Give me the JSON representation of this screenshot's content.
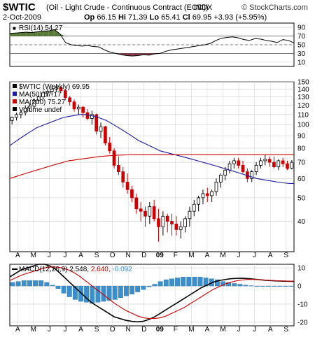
{
  "header": {
    "symbol": "$WTIC",
    "name": "(Oil - Light Crude - Continuous Contract (EOD))",
    "exchange": "INDX",
    "brand": "© StockCharts.com",
    "date": "2-Oct-2009",
    "open_label": "Op",
    "open": "66.15",
    "high_label": "Hi",
    "high": "71.39",
    "low_label": "Lo",
    "low": "65.41",
    "close_label": "Cl",
    "close": "69.95",
    "change": "+3.93 (+5.95%)"
  },
  "colors": {
    "up_candle": "#000000",
    "down_candle": "#cc0000",
    "ma50": "#1a1aa0",
    "ma200": "#cc0000",
    "rsi_line": "#000000",
    "rsi_overbought_fill": "#5a7a3a",
    "rsi_oversold_fill": "#8a3a4a",
    "macd_line": "#000000",
    "signal_line": "#cc0000",
    "histogram": "#3a8fcc",
    "grid": "#cccccc"
  },
  "chart_data": [
    {
      "type": "line",
      "title": "RSI(14) 54.27",
      "legend_label": "RSI(14)",
      "legend_value": "54.27",
      "ylim": [
        0,
        100
      ],
      "ticks": [
        90,
        70,
        50,
        30,
        10
      ],
      "reference_lines": [
        70,
        50,
        30
      ],
      "series": [
        {
          "values": [
            76,
            77,
            78,
            79,
            78,
            80,
            82,
            82,
            85,
            75,
            55,
            50,
            48,
            47,
            48,
            46,
            45,
            38,
            33,
            30,
            27,
            25,
            24,
            25,
            27,
            26,
            29,
            30,
            35,
            38,
            40,
            42,
            44,
            46,
            48,
            50,
            53,
            60,
            65,
            67,
            68,
            66,
            62,
            60,
            64,
            63,
            60,
            58,
            55,
            62,
            60,
            54.27
          ]
        }
      ]
    },
    {
      "type": "candlestick",
      "title": "$WTIC (Weekly) 69.95",
      "legend": [
        "$WTIC (Weekly) 69.95",
        "MA(50) 57.17",
        "MA(200) 75.27",
        "Volume undef"
      ],
      "scale": "log",
      "ylim": [
        30,
        150
      ],
      "ticks": [
        150,
        140,
        130,
        120,
        110,
        100,
        90,
        80,
        70,
        60,
        50,
        40
      ],
      "x_labels": [
        "A",
        "M",
        "J",
        "J",
        "A",
        "S",
        "O",
        "N",
        "D",
        "09",
        "F",
        "M",
        "A",
        "M",
        "J",
        "J",
        "A",
        "S"
      ],
      "ohlc": [
        [
          104,
          108,
          100,
          107
        ],
        [
          107,
          112,
          104,
          110
        ],
        [
          110,
          115,
          106,
          112
        ],
        [
          112,
          120,
          109,
          117
        ],
        [
          117,
          122,
          113,
          119
        ],
        [
          119,
          128,
          116,
          126
        ],
        [
          126,
          132,
          122,
          130
        ],
        [
          130,
          138,
          127,
          135
        ],
        [
          135,
          140,
          130,
          137
        ],
        [
          137,
          145,
          132,
          140
        ],
        [
          140,
          147,
          136,
          142
        ],
        [
          142,
          144,
          135,
          138
        ],
        [
          138,
          140,
          126,
          129
        ],
        [
          129,
          131,
          120,
          124
        ],
        [
          124,
          127,
          113,
          116
        ],
        [
          116,
          121,
          110,
          118
        ],
        [
          118,
          119,
          107,
          112
        ],
        [
          112,
          116,
          104,
          106
        ],
        [
          106,
          114,
          100,
          110
        ],
        [
          110,
          111,
          91,
          94
        ],
        [
          94,
          102,
          88,
          98
        ],
        [
          98,
          99,
          82,
          84
        ],
        [
          84,
          89,
          76,
          78
        ],
        [
          78,
          80,
          66,
          68
        ],
        [
          68,
          74,
          62,
          64
        ],
        [
          64,
          67,
          55,
          58
        ],
        [
          58,
          63,
          52,
          54
        ],
        [
          54,
          56,
          48,
          50
        ],
        [
          50,
          52,
          43,
          45
        ],
        [
          45,
          48,
          40,
          44
        ],
        [
          44,
          46,
          38,
          42
        ],
        [
          42,
          48,
          39,
          46
        ],
        [
          46,
          49,
          40,
          41
        ],
        [
          41,
          45,
          33,
          38
        ],
        [
          38,
          44,
          35,
          42
        ],
        [
          42,
          43,
          36,
          40
        ],
        [
          40,
          43,
          35,
          39
        ],
        [
          39,
          42,
          35,
          37
        ],
        [
          37,
          40,
          34,
          38
        ],
        [
          38,
          42,
          36,
          41
        ],
        [
          41,
          46,
          38,
          44
        ],
        [
          44,
          49,
          42,
          47
        ],
        [
          47,
          51,
          44,
          50
        ],
        [
          50,
          54,
          47,
          52
        ],
        [
          52,
          55,
          48,
          51
        ],
        [
          51,
          54,
          48,
          53
        ],
        [
          53,
          60,
          51,
          58
        ],
        [
          58,
          63,
          55,
          62
        ],
        [
          62,
          67,
          59,
          65
        ],
        [
          65,
          71,
          63,
          69
        ],
        [
          69,
          73,
          66,
          71
        ],
        [
          71,
          73,
          66,
          68
        ],
        [
          68,
          71,
          63,
          64
        ],
        [
          64,
          66,
          58,
          60
        ],
        [
          60,
          65,
          58,
          64
        ],
        [
          64,
          70,
          62,
          68
        ],
        [
          68,
          73,
          66,
          71
        ],
        [
          71,
          75,
          68,
          72
        ],
        [
          72,
          74,
          67,
          70
        ],
        [
          70,
          74,
          66,
          67
        ],
        [
          67,
          72,
          65,
          71
        ],
        [
          71,
          73,
          67,
          69
        ],
        [
          69,
          71,
          65,
          66
        ],
        [
          66.15,
          71.39,
          65.41,
          69.95
        ]
      ],
      "series": [
        {
          "name": "MA(50)",
          "last": 57.17,
          "values": [
            82,
            85,
            88,
            91,
            94,
            97,
            99,
            101,
            103,
            105,
            107,
            108,
            109,
            110,
            110,
            109,
            108,
            106,
            104,
            101,
            98,
            95,
            92,
            89,
            86,
            84,
            82,
            80,
            78,
            77,
            76,
            75,
            74,
            73,
            72,
            71,
            70,
            69,
            68,
            67,
            66,
            65,
            64,
            63,
            62,
            61,
            60,
            59.5,
            59,
            58.5,
            58,
            57.6,
            57.3,
            57.17
          ]
        },
        {
          "name": "MA(200)",
          "last": 75.27,
          "values": [
            60,
            61,
            62,
            63,
            64,
            65,
            66,
            67,
            68,
            69,
            70,
            71,
            71.5,
            72,
            72.5,
            73,
            73.5,
            74,
            74.3,
            74.6,
            74.8,
            75,
            75.1,
            75.2,
            75.2,
            75.2,
            75.2,
            75.2,
            75.2,
            75.2,
            75.2,
            75.2,
            75.2,
            75.2,
            75.2,
            75.2,
            75.2,
            75.2,
            75.2,
            75.2,
            75.2,
            75.2,
            75.2,
            75.2,
            75.2,
            75.2,
            75.2,
            75.2,
            75.2,
            75.2,
            75.2,
            75.2,
            75.2,
            75.27
          ]
        }
      ]
    },
    {
      "type": "line",
      "title": "MACD(12,26,9) 2.548, 2.640, -0.092",
      "legend_label": "MACD(12,26,9)",
      "legend_macd": "2.548",
      "legend_signal": "2.640",
      "legend_hist": "-0.092",
      "ylim": [
        -22,
        12
      ],
      "ticks": [
        10,
        0,
        -10,
        -20
      ],
      "x_labels": [
        "A",
        "M",
        "J",
        "J",
        "A",
        "S",
        "O",
        "N",
        "D",
        "09",
        "F",
        "M",
        "A",
        "M",
        "J",
        "J",
        "A",
        "S"
      ],
      "series": [
        {
          "name": "MACD",
          "values": [
            5,
            7,
            9,
            10,
            11,
            12,
            12,
            11,
            9,
            6,
            3,
            0,
            -3,
            -6,
            -9,
            -11,
            -13,
            -15,
            -17,
            -18,
            -19,
            -19.5,
            -19.8,
            -19.5,
            -18.5,
            -17,
            -15,
            -13,
            -11,
            -9,
            -7,
            -5,
            -3,
            -1,
            0.5,
            2,
            3,
            3.5,
            4,
            4.2,
            4.3,
            4.1,
            3.8,
            3.5,
            3.2,
            3,
            2.8,
            2.7,
            2.6,
            2.548
          ]
        },
        {
          "name": "Signal",
          "values": [
            3,
            4.5,
            6,
            7,
            8,
            9,
            10,
            10.5,
            10.5,
            10,
            9,
            7.5,
            5.5,
            3,
            0.5,
            -2,
            -4.5,
            -7,
            -9.5,
            -11.5,
            -13.5,
            -15,
            -16.5,
            -17.5,
            -18,
            -18,
            -17.5,
            -16.5,
            -15,
            -13.5,
            -12,
            -10,
            -8,
            -6,
            -4,
            -2,
            -0.5,
            1,
            2,
            2.8,
            3.3,
            3.6,
            3.6,
            3.5,
            3.3,
            3.1,
            2.9,
            2.8,
            2.7,
            2.64
          ]
        },
        {
          "name": "Histogram",
          "values": [
            2,
            2.5,
            3,
            3,
            3,
            3,
            2,
            0.5,
            -1.5,
            -4,
            -6,
            -7.5,
            -8.5,
            -9,
            -9.5,
            -9,
            -8.5,
            -8,
            -7.5,
            -6.5,
            -5.5,
            -4.5,
            -3.3,
            -2,
            -0.5,
            1,
            2.5,
            3.5,
            4,
            4.5,
            5,
            5,
            5,
            5,
            4.5,
            4,
            3.5,
            2.5,
            2,
            1.4,
            1,
            0.5,
            0.2,
            0,
            -0.1,
            -0.1,
            -0.1,
            -0.1,
            -0.1,
            -0.092
          ]
        }
      ]
    }
  ]
}
